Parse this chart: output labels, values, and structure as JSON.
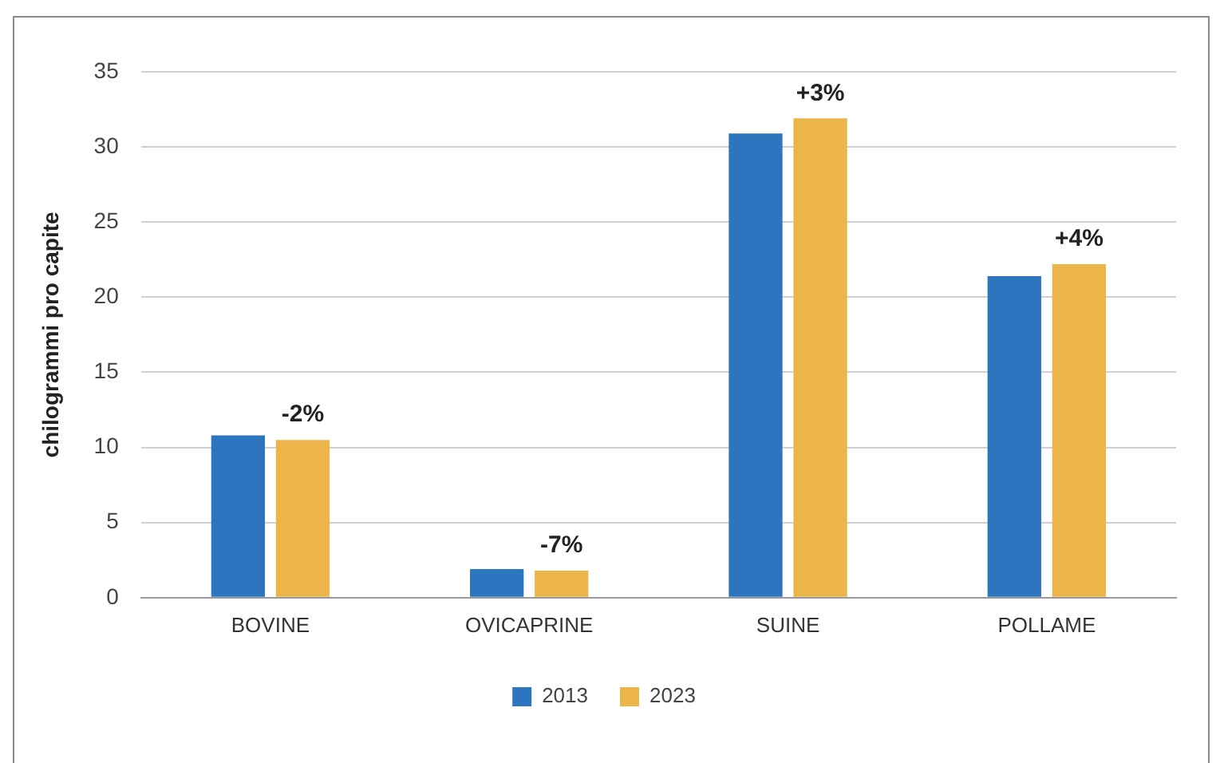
{
  "chart_data": {
    "type": "bar",
    "ylabel": "chilogrammi pro capite",
    "categories": [
      "BOVINE",
      "OVICAPRINE",
      "SUINE",
      "POLLAME"
    ],
    "series": [
      {
        "name": "2013",
        "color": "#2e75c0",
        "values": [
          10.8,
          1.9,
          30.9,
          21.4
        ]
      },
      {
        "name": "2023",
        "color": "#ebb54a",
        "values": [
          10.5,
          1.8,
          31.9,
          22.2
        ]
      }
    ],
    "ylim": [
      0,
      35
    ],
    "yticks": [
      0,
      5,
      10,
      15,
      20,
      25,
      30,
      35
    ],
    "grid": "y",
    "legend": "bottom",
    "annotations": [
      {
        "text": "-2%",
        "x": "BOVINE",
        "y": 10.5
      },
      {
        "text": "-7%",
        "x": "OVICAPRINE",
        "y": 1.8
      },
      {
        "text": "+3%",
        "x": "SUINE",
        "y": 31.9
      },
      {
        "text": "+4%",
        "x": "POLLAME",
        "y": 22.2
      }
    ]
  }
}
